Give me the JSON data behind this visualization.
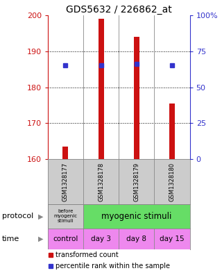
{
  "title": "GDS5632 / 226862_at",
  "samples": [
    "GSM1328177",
    "GSM1328178",
    "GSM1328179",
    "GSM1328180"
  ],
  "bar_bottoms": [
    160,
    160,
    160,
    160
  ],
  "bar_tops": [
    163.5,
    199,
    194,
    175.5
  ],
  "blue_y": [
    186,
    186,
    186.5,
    186
  ],
  "ylim": [
    160,
    200
  ],
  "yticks_left": [
    160,
    170,
    180,
    190,
    200
  ],
  "yticks_right": [
    0,
    25,
    50,
    75,
    100
  ],
  "ytick_labels_right": [
    "0",
    "25",
    "50",
    "75",
    "100%"
  ],
  "bar_color": "#cc1111",
  "blue_color": "#3333cc",
  "bg_color": "#ffffff",
  "protocol_labels": [
    "before\nmyogenic\nstimuli",
    "myogenic stimuli"
  ],
  "protocol_colors": [
    "#cccccc",
    "#66dd66"
  ],
  "time_labels": [
    "control",
    "day 3",
    "day 8",
    "day 15"
  ],
  "time_bg_color": "#ee88ee",
  "sample_bg_color": "#cccccc",
  "legend_red": "transformed count",
  "legend_blue": "percentile rank within the sample",
  "protocol_text": "protocol",
  "time_text": "time",
  "left_axis_color": "#cc1111",
  "right_axis_color": "#3333cc",
  "grid_color": "#000000",
  "divider_color": "#888888",
  "title_fontsize": 10,
  "tick_fontsize": 8,
  "sample_fontsize": 6,
  "legend_fontsize": 7,
  "label_fontsize": 8
}
